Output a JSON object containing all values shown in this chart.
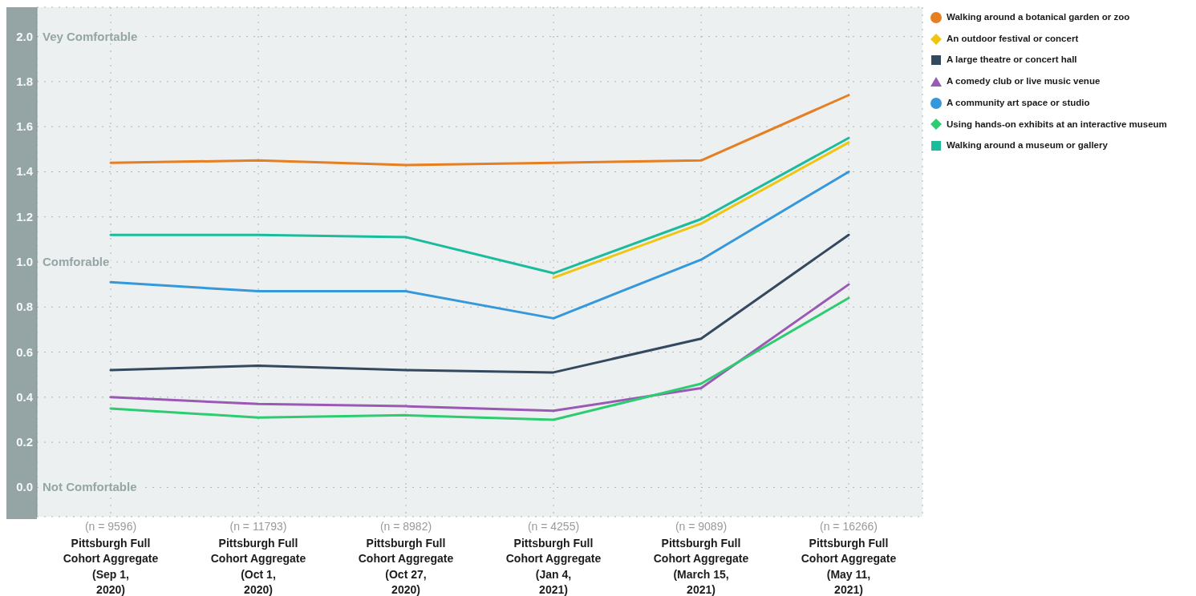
{
  "chart_data": {
    "type": "line",
    "categories": [
      "(n = 9596) Pittsburgh Full Cohort Aggregate (Sep 1, 2020)",
      "(n = 11793) Pittsburgh Full Cohort Aggregate (Oct 1, 2020)",
      "(n = 8982) Pittsburgh Full Cohort Aggregate (Oct 27, 2020)",
      "(n = 4255) Pittsburgh Full Cohort Aggregate (Jan 4, 2021)",
      "(n = 9089) Pittsburgh Full Cohort Aggregate (March 15, 2021)",
      "(n = 16266) Pittsburgh Full Cohort Aggregate (May 11, 2021)"
    ],
    "series": [
      {
        "name": "Walking around a botanical garden or zoo",
        "color": "#e67e22",
        "values": [
          1.44,
          1.45,
          1.43,
          1.44,
          1.45,
          1.74
        ]
      },
      {
        "name": "An outdoor festival or concert",
        "color": "#f1c40f",
        "values": [
          null,
          null,
          null,
          0.93,
          1.17,
          1.53
        ]
      },
      {
        "name": "A large theatre or concert hall",
        "color": "#34495e",
        "values": [
          0.52,
          0.54,
          0.52,
          0.51,
          0.66,
          1.12
        ]
      },
      {
        "name": "A comedy club or live music venue",
        "color": "#9b59b6",
        "values": [
          0.4,
          0.37,
          0.36,
          0.34,
          0.44,
          0.9
        ]
      },
      {
        "name": "A community art space or studio",
        "color": "#3498db",
        "values": [
          0.91,
          0.87,
          0.87,
          0.75,
          1.01,
          1.4
        ]
      },
      {
        "name": "Using hands-on exhibits at an interactive museum",
        "color": "#2ecc71",
        "values": [
          0.35,
          0.31,
          0.32,
          0.3,
          0.46,
          0.84
        ]
      },
      {
        "name": "Walking around a museum or gallery",
        "color": "#1abc9c",
        "values": [
          1.12,
          1.12,
          1.11,
          0.95,
          1.19,
          1.55
        ]
      }
    ],
    "ylim": [
      -0.13,
      2.13
    ],
    "yticks": [
      {
        "value": 0,
        "label": "0.0 Not Comfortable"
      },
      0.2,
      0.4,
      0.6,
      0.8,
      {
        "value": 1,
        "label": "1.0 Comforable"
      },
      1.2,
      1.4,
      1.6,
      1.8,
      {
        "value": 2,
        "label": "2.0 Vey Comfortable"
      }
    ],
    "grid": true,
    "legend": "right"
  }
}
